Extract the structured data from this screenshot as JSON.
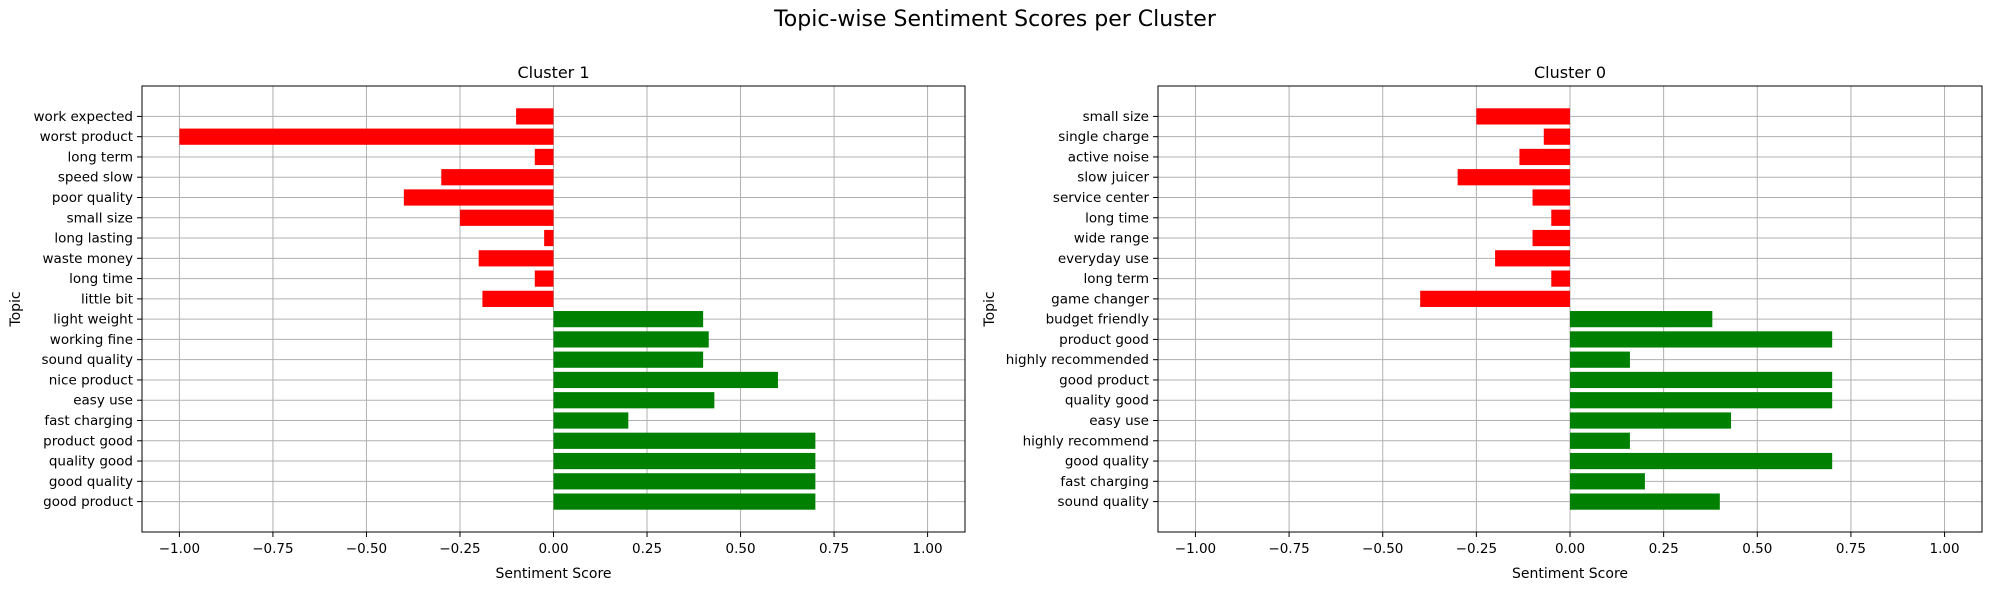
{
  "figure": {
    "title": "Topic-wise Sentiment Scores per Cluster"
  },
  "colors": {
    "positive": "#008000",
    "negative": "#ff0000",
    "grid": "#b0b0b0",
    "axis": "#000000"
  },
  "chart_data": [
    {
      "type": "bar",
      "orientation": "horizontal",
      "title": "Cluster 1",
      "xlabel": "Sentiment Score",
      "ylabel": "Topic",
      "xlim": [
        -1.1,
        1.1
      ],
      "xticks": [
        -1.0,
        -0.75,
        -0.5,
        -0.25,
        0.0,
        0.25,
        0.5,
        0.75,
        1.0
      ],
      "xtick_labels": [
        "−1.00",
        "−0.75",
        "−0.50",
        "−0.25",
        "0.00",
        "0.25",
        "0.50",
        "0.75",
        "1.00"
      ],
      "grid": true,
      "categories": [
        "work expected",
        "worst product",
        "long term",
        "speed slow",
        "poor quality",
        "small size",
        "long lasting",
        "waste money",
        "long time",
        "little bit",
        "light weight",
        "working fine",
        "sound quality",
        "nice product",
        "easy use",
        "fast charging",
        "product good",
        "quality good",
        "good quality",
        "good product"
      ],
      "values": [
        -0.1,
        -1.0,
        -0.05,
        -0.3,
        -0.4,
        -0.25,
        -0.025,
        -0.2,
        -0.05,
        -0.19,
        0.4,
        0.415,
        0.4,
        0.6,
        0.43,
        0.2,
        0.7,
        0.7,
        0.7,
        0.7
      ]
    },
    {
      "type": "bar",
      "orientation": "horizontal",
      "title": "Cluster 0",
      "xlabel": "Sentiment Score",
      "ylabel": "Topic",
      "xlim": [
        -1.1,
        1.1
      ],
      "xticks": [
        -1.0,
        -0.75,
        -0.5,
        -0.25,
        0.0,
        0.25,
        0.5,
        0.75,
        1.0
      ],
      "xtick_labels": [
        "−1.00",
        "−0.75",
        "−0.50",
        "−0.25",
        "0.00",
        "0.25",
        "0.50",
        "0.75",
        "1.00"
      ],
      "grid": true,
      "categories": [
        "small size",
        "single charge",
        "active noise",
        "slow juicer",
        "service center",
        "long time",
        "wide range",
        "everyday use",
        "long term",
        "game changer",
        "budget friendly",
        "product good",
        "highly recommended",
        "good product",
        "quality good",
        "easy use",
        "highly recommend",
        "good quality",
        "fast charging",
        "sound quality"
      ],
      "values": [
        -0.25,
        -0.07,
        -0.135,
        -0.3,
        -0.1,
        -0.05,
        -0.1,
        -0.2,
        -0.05,
        -0.4,
        0.38,
        0.7,
        0.16,
        0.7,
        0.7,
        0.43,
        0.16,
        0.7,
        0.2,
        0.4
      ]
    }
  ]
}
